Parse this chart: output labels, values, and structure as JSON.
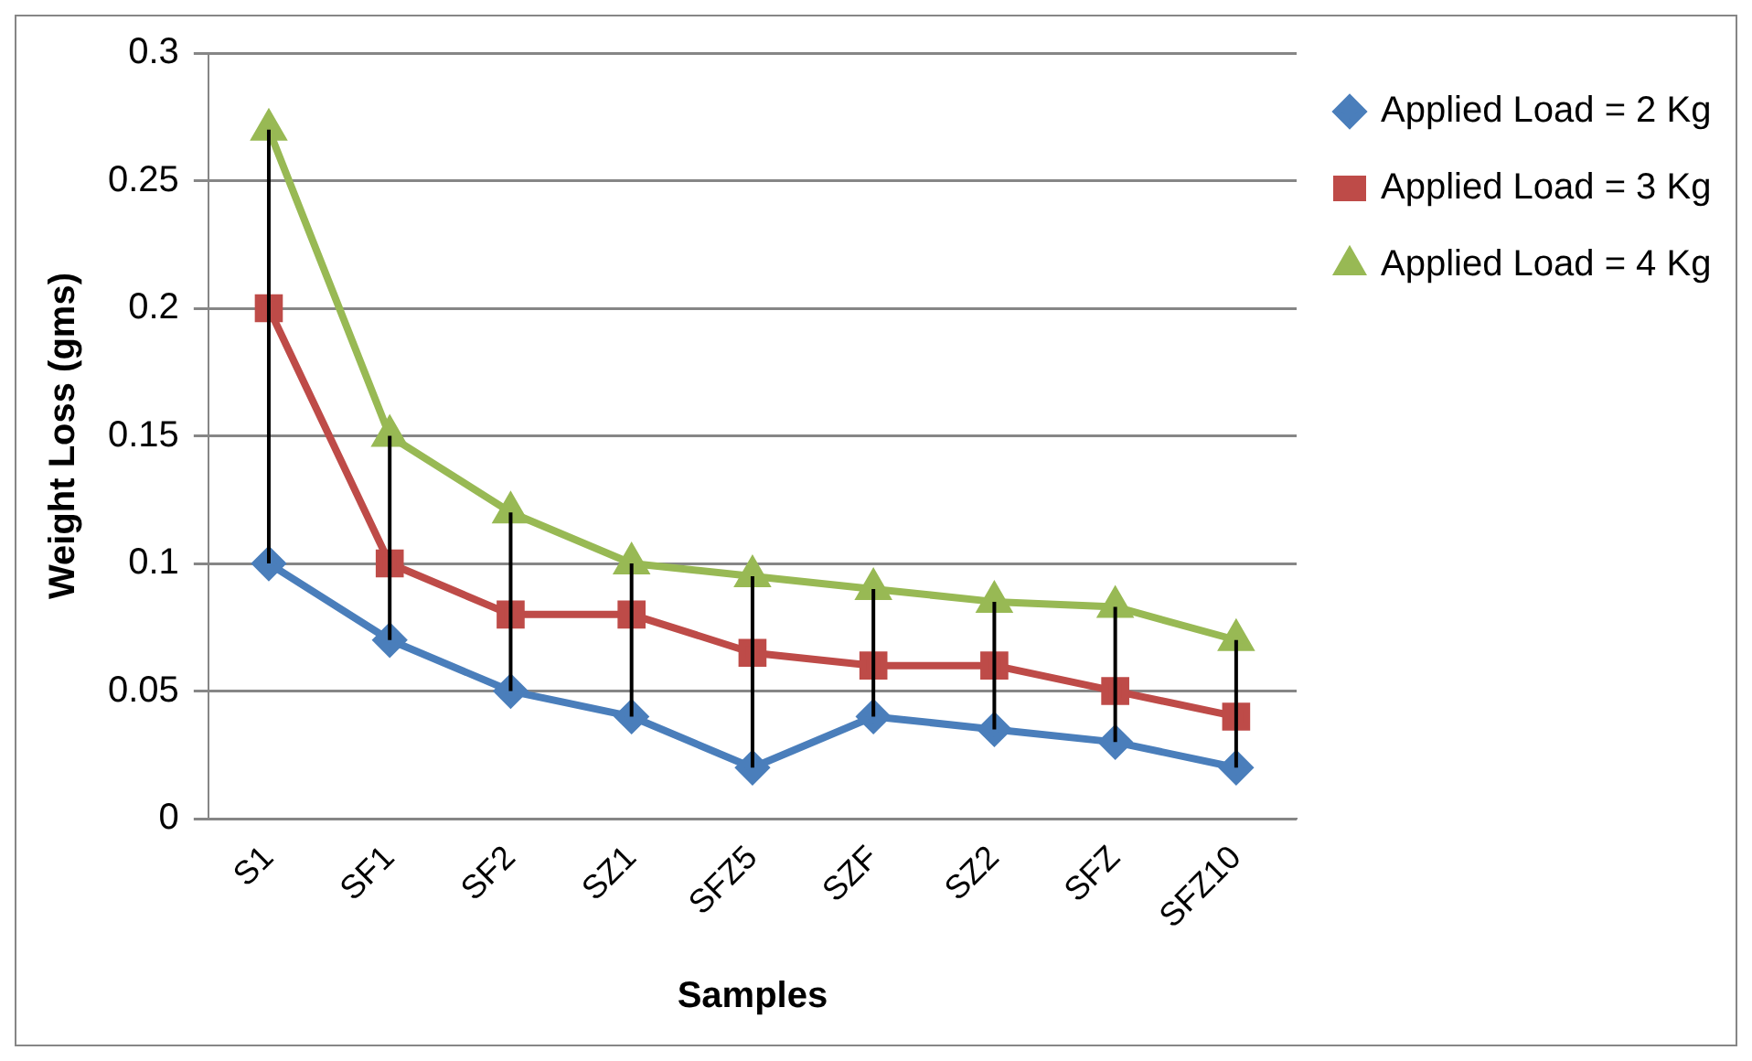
{
  "chart_data": {
    "type": "line",
    "xlabel": "Samples",
    "ylabel": "Weight Loss (gms)",
    "categories": [
      "S1",
      "SF1",
      "SF2",
      "SZ1",
      "SFZ5",
      "SZF",
      "SZ2",
      "SFZ",
      "SFZ10"
    ],
    "series": [
      {
        "name": "Applied Load = 2 Kg",
        "color": "#4a7ebb",
        "marker": "diamond",
        "values": [
          0.1,
          0.07,
          0.05,
          0.04,
          0.02,
          0.04,
          0.035,
          0.03,
          0.02
        ],
        "errors": [
          [
            0.1,
            0.27
          ],
          [
            0.07,
            0.15
          ],
          [
            0.05,
            0.12
          ],
          [
            0.04,
            0.1
          ],
          [
            0.02,
            0.095
          ],
          [
            0.04,
            0.09
          ],
          [
            0.035,
            0.085
          ],
          [
            0.03,
            0.083
          ],
          [
            0.02,
            0.07
          ]
        ]
      },
      {
        "name": "Applied Load = 3 Kg",
        "color": "#be4b48",
        "marker": "square",
        "values": [
          0.2,
          0.1,
          0.08,
          0.08,
          0.065,
          0.06,
          0.06,
          0.05,
          0.04
        ]
      },
      {
        "name": "Applied Load = 4 Kg",
        "color": "#98b954",
        "marker": "triangle",
        "values": [
          0.27,
          0.15,
          0.12,
          0.1,
          0.095,
          0.09,
          0.085,
          0.083,
          0.07
        ]
      }
    ],
    "ylim": [
      0,
      0.3
    ],
    "yticks": [
      0,
      0.05,
      0.1,
      0.15,
      0.2,
      0.25,
      0.3
    ],
    "grid": "y",
    "legend": "right"
  }
}
